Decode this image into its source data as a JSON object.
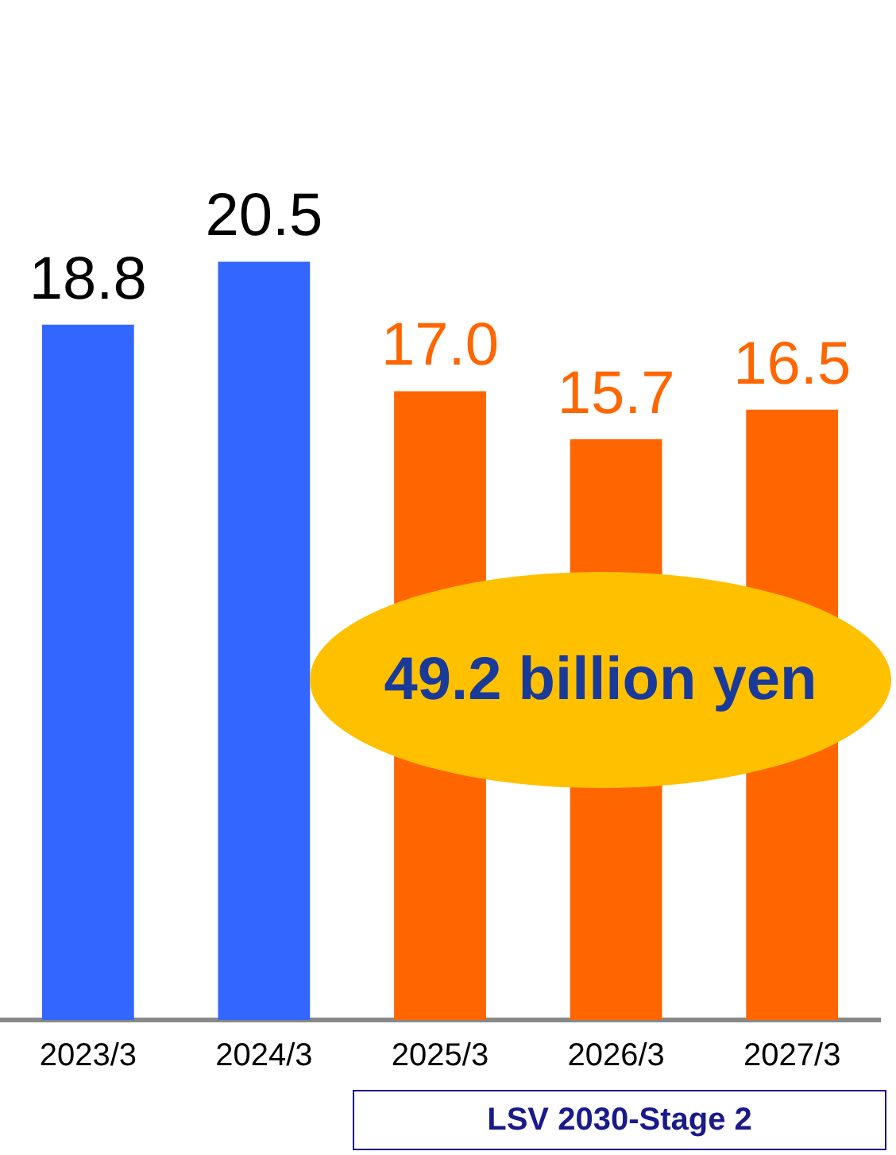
{
  "chart_data": {
    "type": "bar",
    "categories": [
      "2023/3",
      "2024/3",
      "2025/3",
      "2026/3",
      "2027/3"
    ],
    "values": [
      18.8,
      20.5,
      17.0,
      15.7,
      16.5
    ],
    "colors": [
      "#3366ff",
      "#3366ff",
      "#ff6600",
      "#ff6600",
      "#ff6600"
    ],
    "value_labels": [
      "18.8",
      "20.5",
      "17.0",
      "15.7",
      "16.5"
    ],
    "annotations": [
      "49.2 billion yen",
      "LSV 2030-Stage 2"
    ]
  }
}
